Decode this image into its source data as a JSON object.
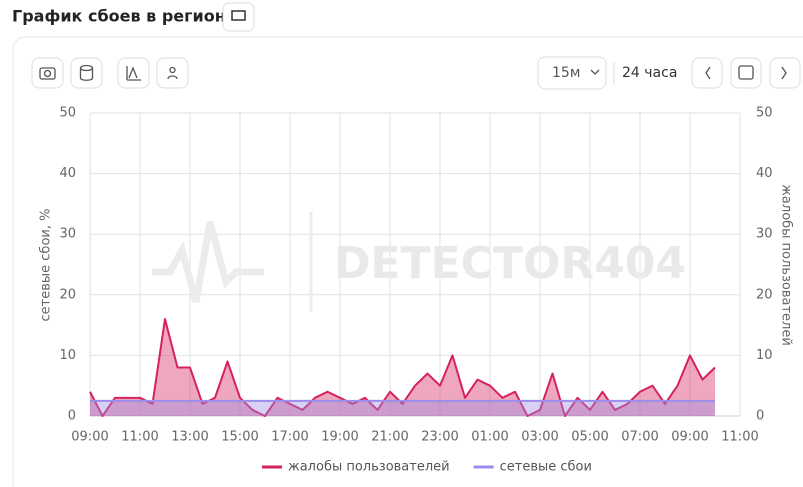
{
  "header": {
    "title": "График сбоев в регионе"
  },
  "toolbar": {
    "interval": "15м",
    "range": "24 часа"
  },
  "watermark": "DETECTOR404",
  "chart_data": {
    "type": "area",
    "ylabel": "сетевые сбои, %",
    "y2label": "жалобы пользователей",
    "ylim": [
      0,
      50
    ],
    "yticks": [
      0,
      10,
      20,
      30,
      40,
      50
    ],
    "y2lim": [
      0,
      50
    ],
    "y2ticks": [
      0,
      10,
      20,
      30,
      40,
      50
    ],
    "grid": true,
    "legend": "bottom",
    "categories": [
      "09:00",
      null,
      null,
      null,
      "11:00",
      null,
      null,
      null,
      "13:00",
      null,
      null,
      null,
      "15:00",
      null,
      null,
      null,
      "17:00",
      null,
      null,
      null,
      "19:00",
      null,
      null,
      null,
      "21:00",
      null,
      null,
      null,
      "23:00",
      null,
      null,
      null,
      "01:00",
      null,
      null,
      null,
      "03:00",
      null,
      null,
      null,
      "05:00",
      null,
      null,
      null,
      "07:00",
      null,
      null,
      null,
      "09:00",
      null,
      null,
      null,
      "11:00"
    ],
    "series": [
      {
        "name": "жалобы пользователей",
        "color": "#d6225c",
        "axis": "y2",
        "values": [
          4,
          0,
          3,
          3,
          3,
          2,
          16,
          8,
          8,
          2,
          3,
          9,
          3,
          1,
          0,
          3,
          2,
          1,
          3,
          4,
          3,
          2,
          3,
          1,
          4,
          2,
          5,
          7,
          5,
          10,
          3,
          6,
          5,
          3,
          4,
          0,
          1,
          7,
          0,
          3,
          1,
          4,
          1,
          2,
          4,
          5,
          2,
          5,
          10,
          6,
          8,
          null,
          null
        ]
      },
      {
        "name": "сетевые сбои",
        "color": "#9b8de8",
        "values": [
          2.5,
          2.5,
          2.5,
          2.5,
          2.5,
          2.5,
          2.5,
          2.5,
          2.5,
          2.5,
          2.5,
          2.5,
          2.5,
          2.5,
          2.5,
          2.5,
          2.5,
          2.5,
          2.5,
          2.5,
          2.5,
          2.5,
          2.5,
          2.5,
          2.5,
          2.5,
          2.5,
          2.5,
          2.5,
          2.5,
          2.5,
          2.5,
          2.5,
          2.5,
          2.5,
          2.5,
          2.5,
          2.5,
          2.5,
          2.5,
          2.5,
          2.5,
          2.5,
          2.5,
          2.5,
          2.5,
          2.5,
          2.5,
          2.5,
          2.5,
          2.5,
          null,
          null
        ]
      }
    ]
  }
}
